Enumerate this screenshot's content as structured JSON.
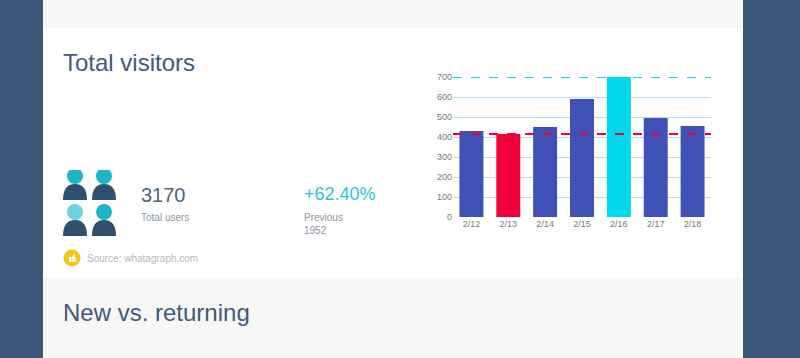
{
  "header": {
    "title": "Total visitors"
  },
  "stats": {
    "total": {
      "value": 3170,
      "label": "Total users"
    },
    "change": "+62.40%",
    "previous": {
      "label": "Previous",
      "value": 1952
    }
  },
  "source": "Source: whatagraph.com",
  "next_section": {
    "title": "New vs. returning"
  },
  "chart_data": {
    "type": "bar",
    "categories": [
      "2/12",
      "2/13",
      "2/14",
      "2/15",
      "2/16",
      "2/17",
      "2/18"
    ],
    "values": [
      430,
      415,
      450,
      590,
      700,
      495,
      455
    ],
    "colors": [
      "#3f51b5",
      "#f2003c",
      "#3f51b5",
      "#3f51b5",
      "#00d8ee",
      "#3f51b5",
      "#3f51b5"
    ],
    "ylim": [
      0,
      700
    ],
    "yticks": [
      0,
      100,
      200,
      300,
      400,
      500,
      600,
      700
    ],
    "grid": true,
    "reference_lines": [
      {
        "value": 700,
        "color": "#00d8ee",
        "line_style": "dashed"
      },
      {
        "value": 415,
        "color": "#f2003c",
        "line_style": "dashed"
      }
    ]
  }
}
